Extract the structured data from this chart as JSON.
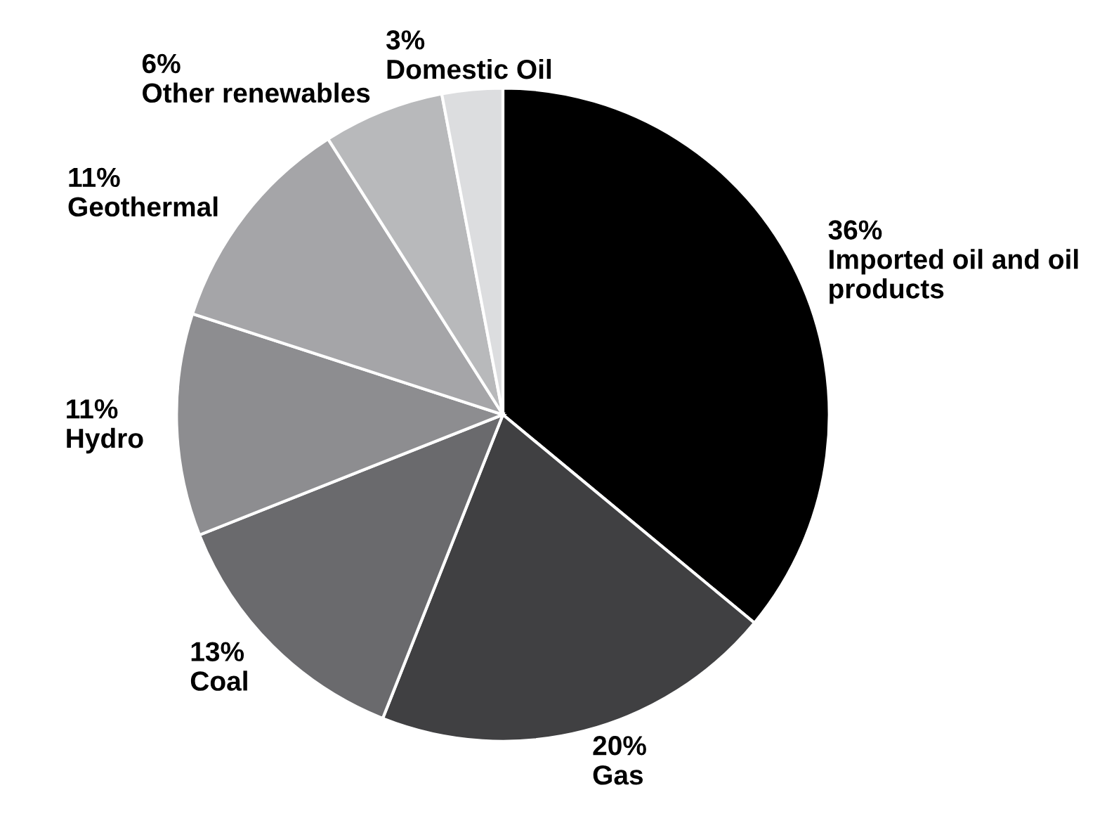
{
  "chart_data": {
    "type": "pie",
    "categories": [
      "Imported oil and oil products",
      "Gas",
      "Coal",
      "Hydro",
      "Geothermal",
      "Other renewables",
      "Domestic Oil"
    ],
    "values": [
      36,
      20,
      13,
      11,
      11,
      6,
      3
    ],
    "value_labels": [
      "36%",
      "20%",
      "13%",
      "11%",
      "11%",
      "6%",
      "3%"
    ],
    "colors": [
      "#000000",
      "#404042",
      "#6a6a6d",
      "#8d8d90",
      "#a5a5a8",
      "#b8b9bb",
      "#dcdddf"
    ]
  }
}
